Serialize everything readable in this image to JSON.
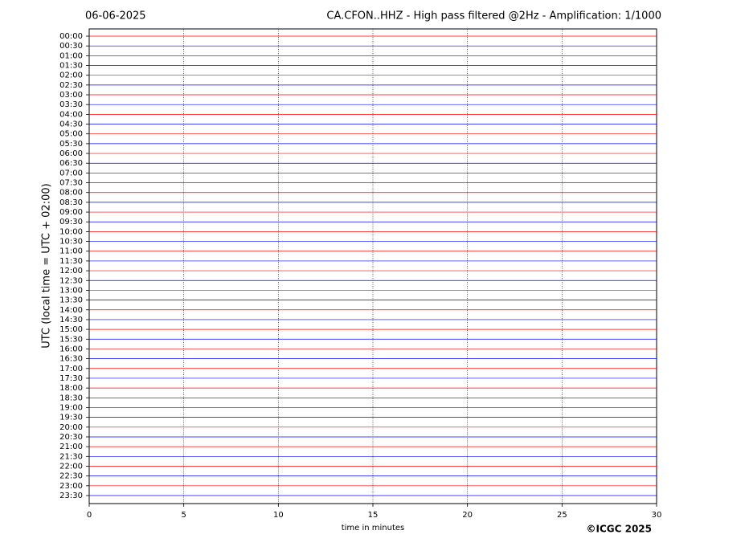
{
  "chart_data": {
    "type": "helicorder",
    "date": "06-06-2025",
    "title": "CA.CFON..HHZ - High pass filtered @2Hz - Amplification: 1/1000",
    "ylabel": "UTC (local time = UTC + 02:00)",
    "xlabel": "time in minutes",
    "copyright": "©ICGC 2025",
    "categories": [
      "00:00",
      "00:30",
      "01:00",
      "01:30",
      "02:00",
      "02:30",
      "03:00",
      "03:30",
      "04:00",
      "04:30",
      "05:00",
      "05:30",
      "06:00",
      "06:30",
      "07:00",
      "07:30",
      "08:00",
      "08:30",
      "09:00",
      "09:30",
      "10:00",
      "10:30",
      "11:00",
      "11:30",
      "12:00",
      "12:30",
      "13:00",
      "13:30",
      "14:00",
      "14:30",
      "15:00",
      "15:30",
      "16:00",
      "16:30",
      "17:00",
      "17:30",
      "18:00",
      "18:30",
      "19:00",
      "19:30",
      "20:00",
      "20:30",
      "21:00",
      "21:30",
      "22:00",
      "22:30",
      "23:00",
      "23:30"
    ],
    "colors": [
      "#ff0000",
      "#0000ff"
    ],
    "xlim": [
      0,
      30
    ],
    "xticks": [
      0,
      5,
      10,
      15,
      20,
      25,
      30
    ],
    "grid": true
  }
}
